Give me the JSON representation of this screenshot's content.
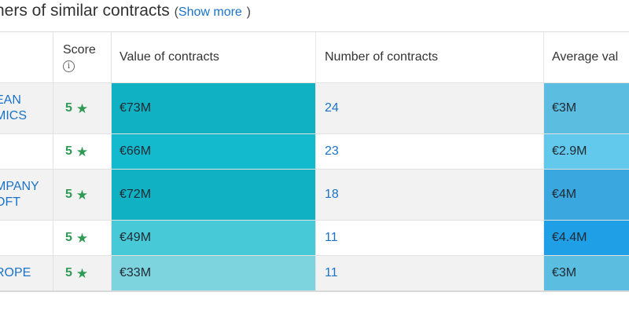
{
  "section": {
    "title": "ners of similar contracts",
    "show_more_open": "(",
    "show_more_label": "Show more",
    "show_more_close": ")"
  },
  "table": {
    "columns": {
      "score": "Score",
      "value": "Value of contracts",
      "number": "Number of contracts",
      "average": "Average val"
    },
    "info_glyph": "i",
    "rows": [
      {
        "name_lines": [
          "EAN",
          "MICS"
        ],
        "score": "5",
        "value": "€73M",
        "number": "24",
        "average": "€3M",
        "value_color": "#0fb1c3",
        "avg_color": "#5bbde0"
      },
      {
        "name_lines": [
          ""
        ],
        "score": "5",
        "value": "€66M",
        "number": "23",
        "average": "€2.9M",
        "value_color": "#13b9cd",
        "avg_color": "#62c8ec"
      },
      {
        "name_lines": [
          "MPANY",
          "OFT"
        ],
        "score": "5",
        "value": "€72M",
        "number": "18",
        "average": "€4M",
        "value_color": "#0fb1c3",
        "avg_color": "#3aa7de"
      },
      {
        "name_lines": [
          ""
        ],
        "score": "5",
        "value": "€49M",
        "number": "11",
        "average": "€4.4M",
        "value_color": "#48c9d8",
        "avg_color": "#1e9fe6"
      },
      {
        "name_lines": [
          "ROPE"
        ],
        "score": "5",
        "value": "€33M",
        "number": "11",
        "average": "€3M",
        "value_color": "#7dd3de",
        "avg_color": "#5bbde0"
      }
    ]
  }
}
